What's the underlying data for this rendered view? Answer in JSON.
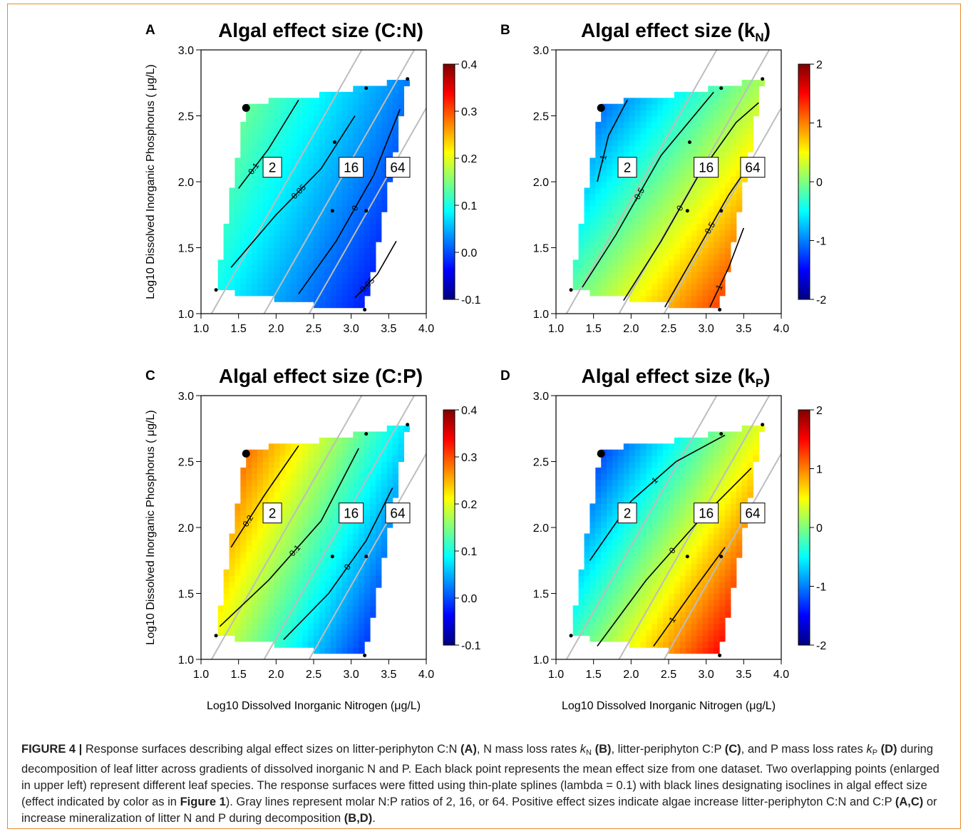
{
  "figure_caption": {
    "label": "FIGURE 4 |",
    "t1": " Response surfaces describing algal effect sizes on litter-periphyton C:N ",
    "A": "(A)",
    "t2": ", N mass loss rates ",
    "kN_k": "k",
    "kN_sub": "N",
    "B": "(B)",
    "t3": ", litter-periphyton C:P ",
    "C": "(C)",
    "t4": ", and P mass loss rates ",
    "kP_k": "k",
    "kP_sub": "P",
    "D": "(D)",
    "t5": " during decomposition of leaf litter across gradients of dissolved inorganic N and P. Each black point represents the mean effect size from one dataset. Two overlapping points (enlarged in upper left) represent different leaf species. The response surfaces were fitted using thin-plate splines (lambda = 0.1) with black lines designating isoclines in algal effect size (effect indicated by color as in ",
    "fig1": "Figure 1",
    "t6": "). Gray lines represent molar N:P ratios of 2, 16, or 64. Positive effect sizes indicate algae increase litter-periphyton C:N and C:P ",
    "AC": "(A,C)",
    "t7": " or increase mineralization of litter N and P during decomposition ",
    "BD": "(B,D)",
    "t8": "."
  },
  "chart_data": [
    {
      "panel": "A",
      "type": "heatmap",
      "title": "Algal effect size (C:N)",
      "xlabel": "",
      "ylabel": "Log10 Dissolved Inorganic Phosphorus ( μg/L)",
      "xlim": [
        1.0,
        4.0
      ],
      "ylim": [
        1.0,
        3.0
      ],
      "xticks": [
        "1.0",
        "1.5",
        "2.0",
        "2.5",
        "3.0",
        "3.5",
        "4.0"
      ],
      "yticks": [
        "1.0",
        "1.5",
        "2.0",
        "2.5",
        "3.0"
      ],
      "colorbar": {
        "min": -0.1,
        "max": 0.4,
        "ticks": [
          "-0.1",
          "0.0",
          "0.1",
          "0.2",
          "0.3",
          "0.4"
        ]
      },
      "surface": {
        "base": 0.06,
        "gx": -0.058,
        "gy": 0.048
      },
      "isoclines": [
        {
          "label": "0.1",
          "points": [
            [
              1.5,
              1.95
            ],
            [
              1.9,
              2.25
            ],
            [
              2.3,
              2.62
            ]
          ]
        },
        {
          "label": "0.05",
          "points": [
            [
              1.4,
              1.35
            ],
            [
              2.0,
              1.75
            ],
            [
              2.6,
              2.1
            ],
            [
              3.05,
              2.5
            ]
          ]
        },
        {
          "label": "0",
          "points": [
            [
              2.3,
              1.15
            ],
            [
              2.8,
              1.55
            ],
            [
              3.3,
              2.05
            ],
            [
              3.65,
              2.55
            ]
          ]
        },
        {
          "label": "-0.05",
          "points": [
            [
              3.05,
              1.12
            ],
            [
              3.35,
              1.3
            ],
            [
              3.6,
              1.55
            ]
          ]
        }
      ],
      "ratio_labels": [
        "2",
        "16",
        "64"
      ],
      "points": [
        [
          1.6,
          2.56
        ],
        [
          1.2,
          1.18
        ],
        [
          2.78,
          2.3
        ],
        [
          3.2,
          2.71
        ],
        [
          3.75,
          2.78
        ],
        [
          2.75,
          1.78
        ],
        [
          3.2,
          1.78
        ],
        [
          3.18,
          1.03
        ]
      ]
    },
    {
      "panel": "B",
      "type": "heatmap",
      "title": "Algal effect size (k",
      "title_sub": "N",
      "title_end": ")",
      "xlabel": "",
      "ylabel": "",
      "xlim": [
        1.0,
        4.0
      ],
      "ylim": [
        1.0,
        3.0
      ],
      "xticks": [
        "1.0",
        "1.5",
        "2.0",
        "2.5",
        "3.0",
        "3.5",
        "4.0"
      ],
      "yticks": [
        "1.0",
        "1.5",
        "2.0",
        "2.5",
        "3.0"
      ],
      "colorbar": {
        "min": -2,
        "max": 2,
        "ticks": [
          "-2",
          "-1",
          "0",
          "1",
          "2"
        ]
      },
      "surface": {
        "base": 0.0,
        "gx": 0.65,
        "gy": -0.85
      },
      "isoclines": [
        {
          "label": "-1",
          "points": [
            [
              1.55,
              2.0
            ],
            [
              1.7,
              2.35
            ],
            [
              1.95,
              2.62
            ]
          ]
        },
        {
          "label": "-0.5",
          "points": [
            [
              1.35,
              1.2
            ],
            [
              1.8,
              1.6
            ],
            [
              2.4,
              2.2
            ],
            [
              3.1,
              2.68
            ]
          ]
        },
        {
          "label": "0",
          "points": [
            [
              1.9,
              1.1
            ],
            [
              2.4,
              1.55
            ],
            [
              2.9,
              2.05
            ],
            [
              3.4,
              2.45
            ],
            [
              3.7,
              2.6
            ]
          ]
        },
        {
          "label": "0.5",
          "points": [
            [
              2.45,
              1.05
            ],
            [
              2.8,
              1.4
            ],
            [
              3.3,
              1.9
            ],
            [
              3.6,
              2.15
            ]
          ]
        },
        {
          "label": "1",
          "points": [
            [
              3.05,
              1.05
            ],
            [
              3.3,
              1.35
            ],
            [
              3.5,
              1.65
            ]
          ]
        }
      ],
      "ratio_labels": [
        "2",
        "16",
        "64"
      ],
      "points": [
        [
          1.6,
          2.56
        ],
        [
          1.2,
          1.18
        ],
        [
          2.78,
          2.3
        ],
        [
          3.2,
          2.71
        ],
        [
          3.75,
          2.78
        ],
        [
          2.75,
          1.78
        ],
        [
          3.2,
          1.78
        ],
        [
          3.18,
          1.03
        ]
      ]
    },
    {
      "panel": "C",
      "type": "heatmap",
      "title": "Algal effect size (C:P)",
      "xlabel": "Log10 Dissolved Inorganic Nitrogen (μg/L)",
      "ylabel": "Log10 Dissolved Inorganic Phosphorus ( μg/L)",
      "xlim": [
        1.0,
        4.0
      ],
      "ylim": [
        1.0,
        3.0
      ],
      "xticks": [
        "1.0",
        "1.5",
        "2.0",
        "2.5",
        "3.0",
        "3.5",
        "4.0"
      ],
      "yticks": [
        "1.0",
        "1.5",
        "2.0",
        "2.5",
        "3.0"
      ],
      "colorbar": {
        "min": -0.1,
        "max": 0.4,
        "ticks": [
          "-0.1",
          "0.0",
          "0.1",
          "0.2",
          "0.3",
          "0.4"
        ]
      },
      "surface": {
        "base": 0.14,
        "gx": -0.105,
        "gy": 0.085
      },
      "isoclines": [
        {
          "label": "0.2",
          "points": [
            [
              1.4,
              1.85
            ],
            [
              1.85,
              2.25
            ],
            [
              2.3,
              2.62
            ]
          ]
        },
        {
          "label": "0.1",
          "points": [
            [
              1.25,
              1.25
            ],
            [
              1.9,
              1.6
            ],
            [
              2.6,
              2.05
            ],
            [
              3.1,
              2.6
            ]
          ]
        },
        {
          "label": "0",
          "points": [
            [
              2.1,
              1.15
            ],
            [
              2.7,
              1.5
            ],
            [
              3.2,
              1.9
            ],
            [
              3.55,
              2.3
            ]
          ]
        }
      ],
      "ratio_labels": [
        "2",
        "16",
        "64"
      ],
      "points": [
        [
          1.6,
          2.56
        ],
        [
          1.2,
          1.18
        ],
        [
          2.75,
          1.78
        ],
        [
          3.2,
          2.71
        ],
        [
          3.75,
          2.78
        ],
        [
          3.2,
          1.78
        ],
        [
          3.18,
          1.03
        ]
      ]
    },
    {
      "panel": "D",
      "type": "heatmap",
      "title": "Algal effect size (k",
      "title_sub": "P",
      "title_end": ")",
      "xlabel": "Log10 Dissolved Inorganic Nitrogen (μg/L)",
      "ylabel": "",
      "xlim": [
        1.0,
        4.0
      ],
      "ylim": [
        1.0,
        3.0
      ],
      "xticks": [
        "1.0",
        "1.5",
        "2.0",
        "2.5",
        "3.0",
        "3.5",
        "4.0"
      ],
      "yticks": [
        "1.0",
        "1.5",
        "2.0",
        "2.5",
        "3.0"
      ],
      "colorbar": {
        "min": -2,
        "max": 2,
        "ticks": [
          "-2",
          "-1",
          "0",
          "1",
          "2"
        ]
      },
      "surface": {
        "base": 0.05,
        "gx": 0.85,
        "gy": -0.9
      },
      "isoclines": [
        {
          "label": "-1",
          "points": [
            [
              1.45,
              1.75
            ],
            [
              2.0,
              2.2
            ],
            [
              2.6,
              2.5
            ],
            [
              3.25,
              2.7
            ]
          ]
        },
        {
          "label": "0",
          "points": [
            [
              1.55,
              1.1
            ],
            [
              2.2,
              1.6
            ],
            [
              2.9,
              2.05
            ],
            [
              3.6,
              2.45
            ]
          ]
        },
        {
          "label": "1",
          "points": [
            [
              2.3,
              1.1
            ],
            [
              2.8,
              1.5
            ],
            [
              3.25,
              1.85
            ]
          ]
        }
      ],
      "ratio_labels": [
        "2",
        "16",
        "64"
      ],
      "points": [
        [
          1.6,
          2.56
        ],
        [
          1.2,
          1.18
        ],
        [
          2.75,
          1.78
        ],
        [
          3.2,
          2.71
        ],
        [
          3.75,
          2.78
        ],
        [
          3.2,
          1.78
        ],
        [
          3.18,
          1.03
        ]
      ]
    }
  ]
}
